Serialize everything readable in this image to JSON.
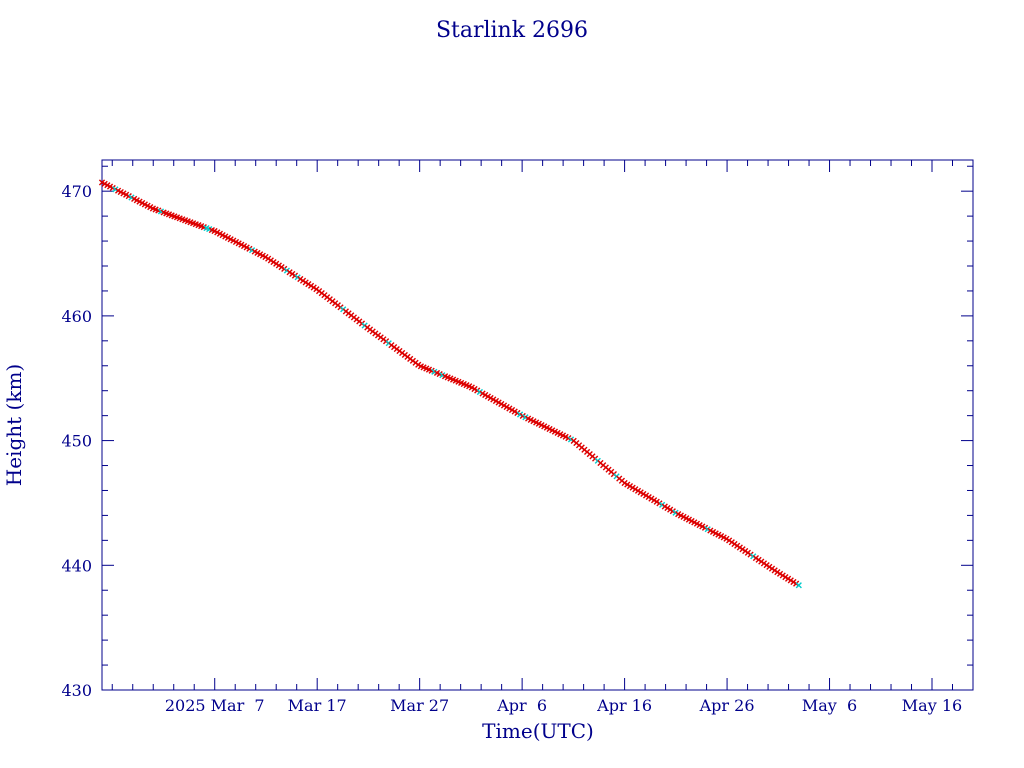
{
  "chart_data": {
    "type": "scatter",
    "title": "Starlink 2696",
    "xlabel": "Time(UTC)",
    "ylabel": "Height (km)",
    "x_axis": {
      "type": "date",
      "range": [
        "2025-02-24",
        "2025-05-20"
      ],
      "major_ticks": [
        {
          "date": "2025-03-07",
          "label": "2025 Mar  7"
        },
        {
          "date": "2025-03-17",
          "label": "Mar 17"
        },
        {
          "date": "2025-03-27",
          "label": "Mar 27"
        },
        {
          "date": "2025-04-06",
          "label": "Apr  6"
        },
        {
          "date": "2025-04-16",
          "label": "Apr 16"
        },
        {
          "date": "2025-04-26",
          "label": "Apr 26"
        },
        {
          "date": "2025-05-06",
          "label": "May  6"
        },
        {
          "date": "2025-05-16",
          "label": "May 16"
        }
      ]
    },
    "y_axis": {
      "range": [
        430,
        472.5
      ],
      "major_ticks": [
        430,
        440,
        450,
        460,
        470
      ],
      "tick_labels": [
        "430",
        "440",
        "450",
        "460",
        "470"
      ],
      "minor_step": 2
    },
    "grid": false,
    "legend": "none",
    "colors": {
      "axes": "#00008b",
      "text": "#00008b",
      "trend_line": "#000000",
      "points_primary": "#dd0000",
      "points_secondary": "#00cccc"
    },
    "trend_points": [
      {
        "x": "2025-02-24",
        "y": 470.7
      },
      {
        "x": "2025-03-01",
        "y": 468.6
      },
      {
        "x": "2025-03-07",
        "y": 466.8
      },
      {
        "x": "2025-03-12",
        "y": 464.7
      },
      {
        "x": "2025-03-17",
        "y": 462.1
      },
      {
        "x": "2025-03-22",
        "y": 459.0
      },
      {
        "x": "2025-03-27",
        "y": 456.0
      },
      {
        "x": "2025-04-01",
        "y": 454.3
      },
      {
        "x": "2025-04-06",
        "y": 452.0
      },
      {
        "x": "2025-04-11",
        "y": 450.0
      },
      {
        "x": "2025-04-16",
        "y": 446.6
      },
      {
        "x": "2025-04-21",
        "y": 444.2
      },
      {
        "x": "2025-04-26",
        "y": 442.1
      },
      {
        "x": "2025-05-01",
        "y": 439.4
      },
      {
        "x": "2025-05-03",
        "y": 438.4
      }
    ]
  }
}
